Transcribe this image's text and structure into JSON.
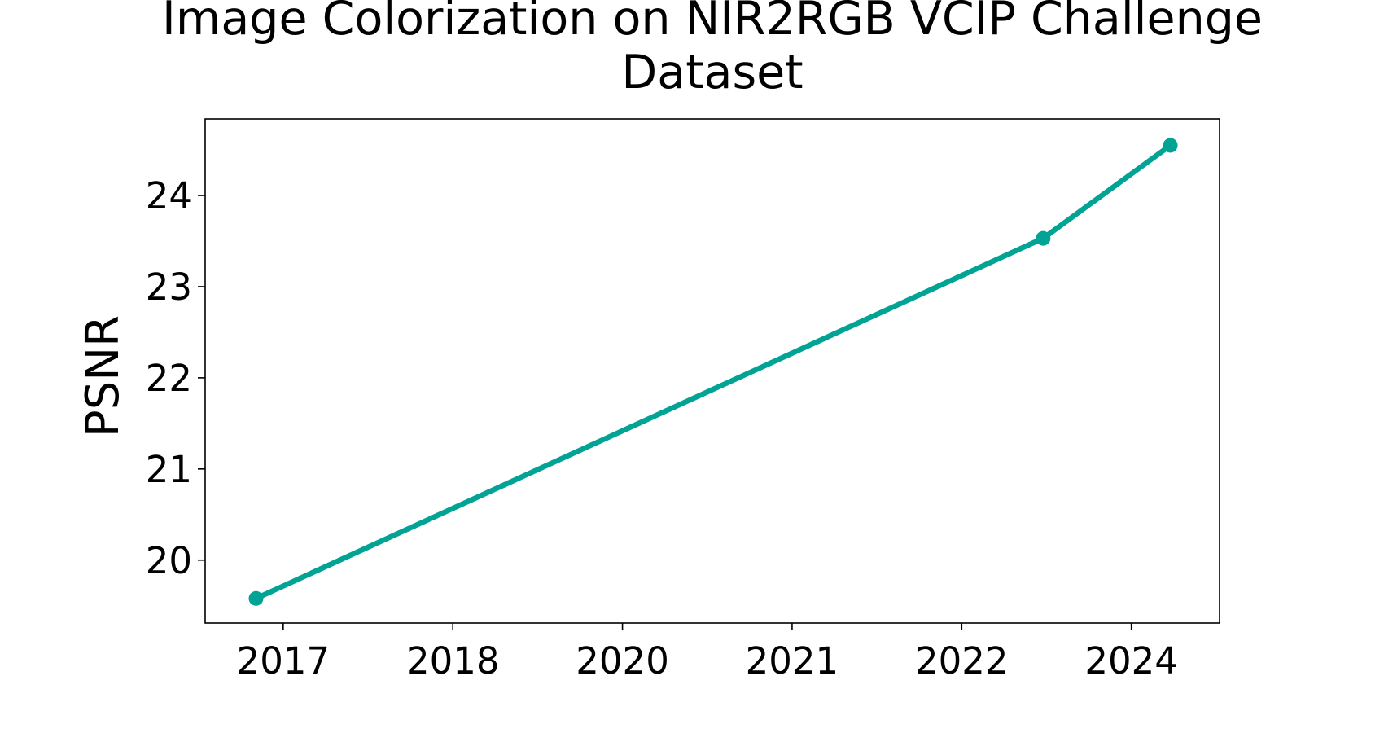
{
  "chart_data": {
    "type": "line",
    "title": "Image Colorization on NIR2RGB VCIP Challenge Dataset",
    "y_label": "PSNR",
    "x": [
      -0.16,
      4.48,
      5.23
    ],
    "series": [
      {
        "name": "PSNR",
        "color": "#00a394",
        "values": [
          19.58,
          23.53,
          24.55
        ]
      }
    ],
    "xlim": [
      -0.46,
      5.52
    ],
    "xticks": [
      {
        "value": 0,
        "label": "2017"
      },
      {
        "value": 1,
        "label": "2018"
      },
      {
        "value": 2,
        "label": "2020"
      },
      {
        "value": 3,
        "label": "2021"
      },
      {
        "value": 4,
        "label": "2022"
      },
      {
        "value": 5,
        "label": "2024"
      }
    ],
    "ylim": [
      19.31,
      24.84
    ],
    "yticks": [
      20,
      21,
      22,
      23,
      24
    ]
  }
}
